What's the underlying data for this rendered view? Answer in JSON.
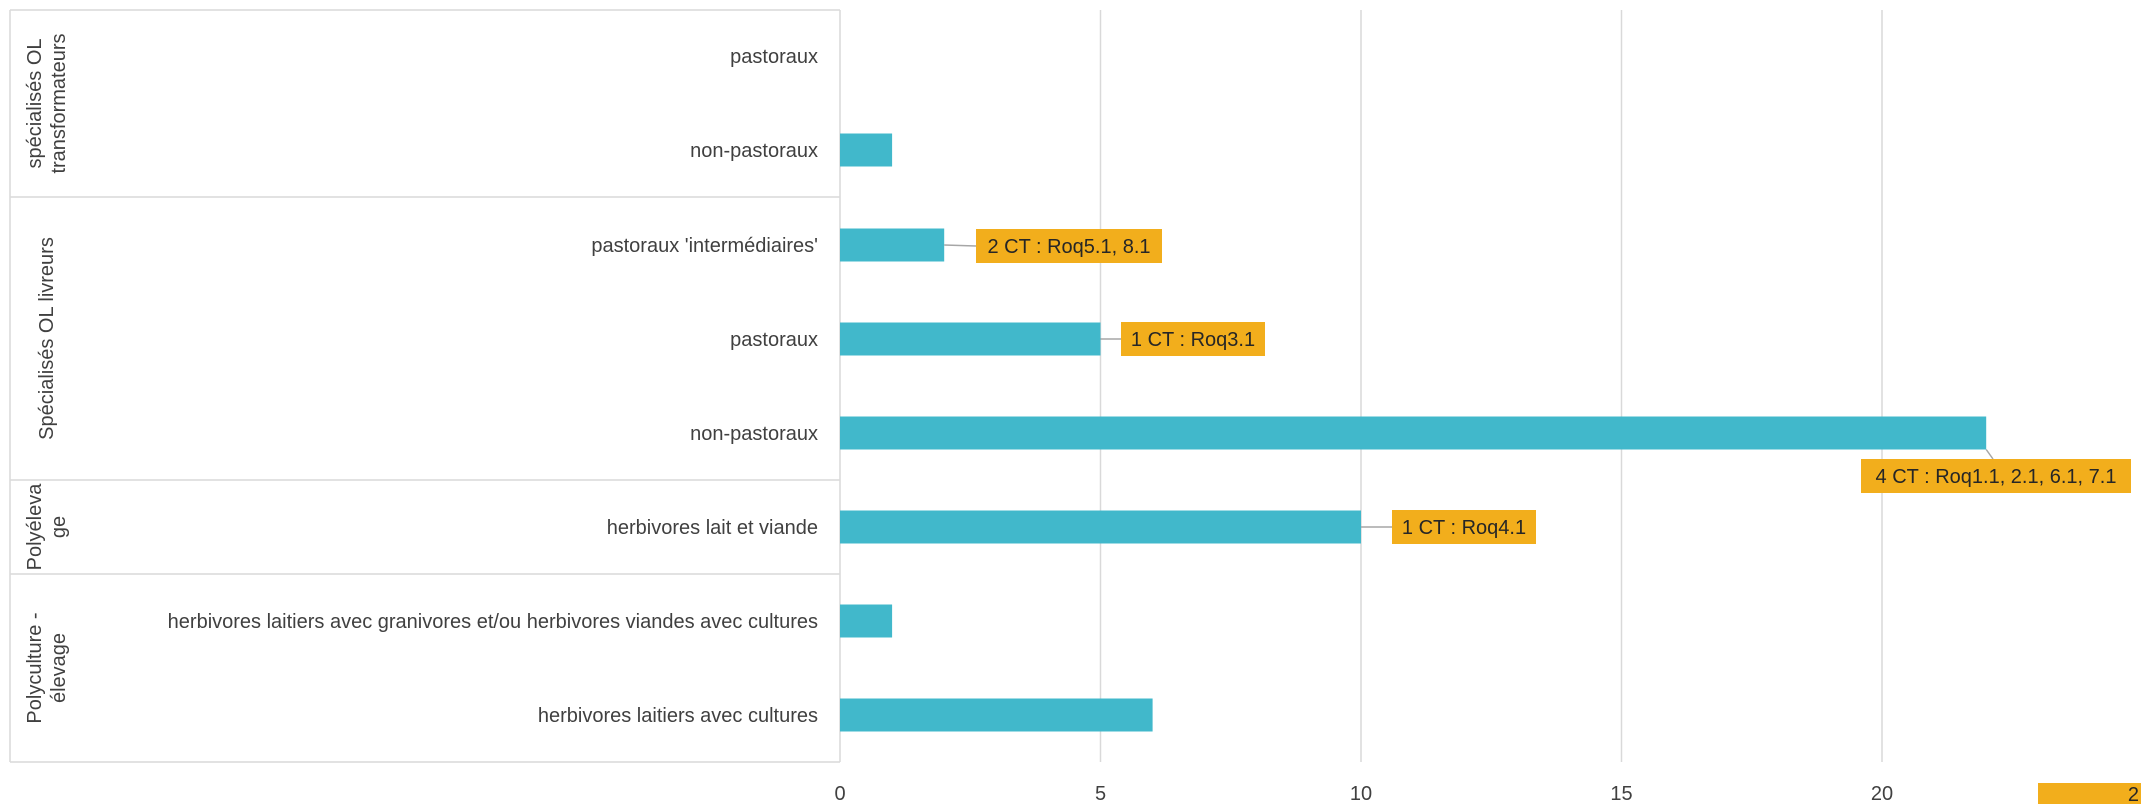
{
  "chart_data": {
    "type": "bar",
    "orientation": "horizontal",
    "groups": [
      {
        "label": "spécialisés OL transformateurs",
        "categories": [
          "pastoraux",
          "non-pastoraux"
        ]
      },
      {
        "label": "Spécialisés OL livreurs",
        "categories": [
          "pastoraux 'intermédiaires'",
          "pastoraux",
          "non-pastoraux"
        ]
      },
      {
        "label": "Polyélevage",
        "categories": [
          "herbivores lait et viande"
        ]
      },
      {
        "label": "Polyculture - élevage",
        "categories": [
          "herbivores laitiers avec granivores et/ou herbivores viandes avec cultures",
          "herbivores laitiers avec cultures"
        ]
      }
    ],
    "categories": [
      "pastoraux",
      "non-pastoraux",
      "pastoraux 'intermédiaires'",
      "pastoraux",
      "non-pastoraux",
      "herbivores lait et viande",
      "herbivores laitiers avec granivores et/ou herbivores viandes avec cultures",
      "herbivores laitiers avec cultures"
    ],
    "values": [
      0,
      1,
      2,
      5,
      22,
      10,
      1,
      6
    ],
    "data_labels": [
      "",
      "",
      "2 CT : Roq5.1, 8.1",
      "1 CT : Roq3.1",
      "4 CT : Roq1.1, 2.1, 6.1, 7.1",
      "1 CT : Roq4.1",
      "",
      ""
    ],
    "xlim": [
      0,
      25
    ],
    "xticks": [
      0,
      5,
      10,
      15,
      20
    ],
    "grid": true,
    "legend_label": "2",
    "colors": {
      "bar": "#41B8CB",
      "label_box": "#F2AE1C",
      "grid": "#D9D9D9",
      "text": "#404040"
    }
  }
}
